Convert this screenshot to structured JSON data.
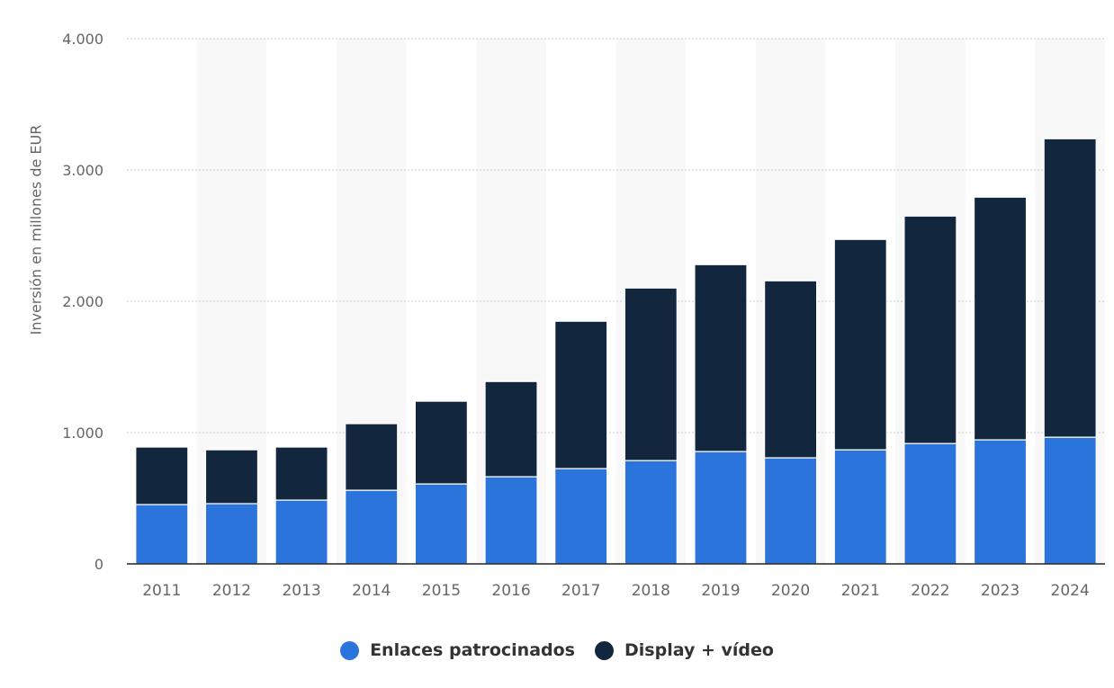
{
  "chart_data": {
    "type": "bar",
    "stacked": true,
    "title": "",
    "xlabel": "",
    "ylabel": "Inversión en millones de EUR",
    "ylim": [
      0,
      4000
    ],
    "yticks": [
      0,
      1000,
      2000,
      3000,
      4000
    ],
    "ytick_labels": [
      "0",
      "1.000",
      "2.000",
      "3.000",
      "4.000"
    ],
    "grid": true,
    "legend_position": "bottom",
    "categories": [
      "2011",
      "2012",
      "2013",
      "2014",
      "2015",
      "2016",
      "2017",
      "2018",
      "2019",
      "2020",
      "2021",
      "2022",
      "2023",
      "2024"
    ],
    "series": [
      {
        "name": "Enlaces patrocinados",
        "color": "#2b74db",
        "values": [
          452,
          459,
          486,
          561,
          609,
          664,
          726,
          787,
          856,
          808,
          869,
          917,
          945,
          965
        ]
      },
      {
        "name": "Display + vídeo",
        "color": "#12263d",
        "values": [
          438,
          410,
          404,
          507,
          630,
          725,
          1122,
          1314,
          1423,
          1348,
          1602,
          1732,
          1848,
          2273
        ]
      }
    ]
  },
  "legend": {
    "items": [
      {
        "label": "Enlaces patrocinados",
        "color": "#2b74db"
      },
      {
        "label": "Display + vídeo",
        "color": "#12263d"
      }
    ]
  },
  "axis": {
    "ylabel": "Inversión en millones de EUR"
  }
}
